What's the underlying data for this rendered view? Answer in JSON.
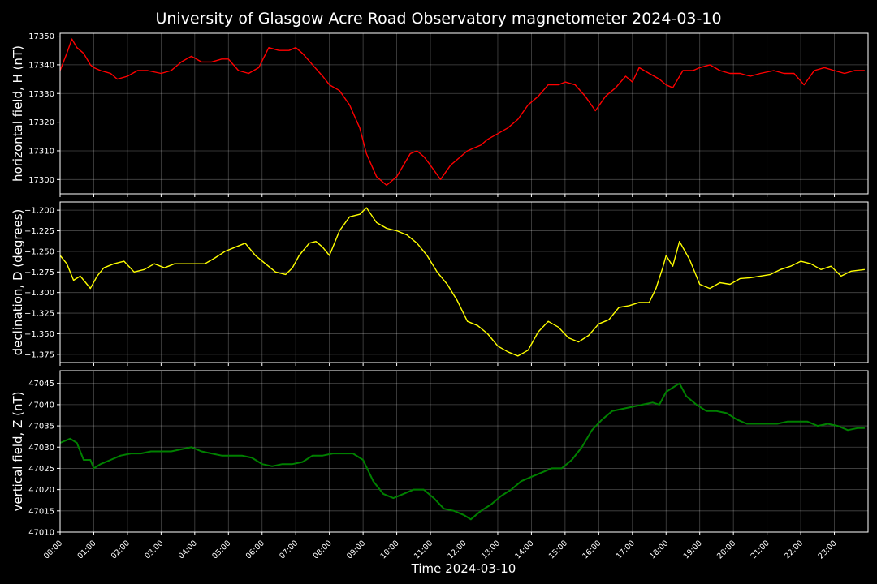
{
  "title": "University of Glasgow Acre Road Observatory magnetometer 2024-03-10",
  "xlabel": "Time 2024-03-10",
  "chart_data": [
    {
      "type": "line",
      "ylabel": "horizontal field, H (nT)",
      "color": "#ff0000",
      "ylim": [
        17295,
        17351
      ],
      "yticks": [
        17300,
        17310,
        17320,
        17330,
        17340,
        17350
      ],
      "ytick_labels": [
        "17300",
        "17310",
        "17320",
        "17330",
        "17340",
        "17350"
      ],
      "grid": true,
      "series": [
        {
          "x": [
            0,
            0.2,
            0.35,
            0.5,
            0.7,
            0.9,
            1.0,
            1.2,
            1.5,
            1.7,
            2.0,
            2.3,
            2.6,
            3.0,
            3.3,
            3.6,
            3.9,
            4.2,
            4.5,
            4.8,
            5.0,
            5.3,
            5.6,
            5.9,
            6.2,
            6.5,
            6.8,
            7.0,
            7.2,
            7.5,
            7.8,
            8.0,
            8.3,
            8.6,
            8.9,
            9.1,
            9.4,
            9.7,
            10.0,
            10.2,
            10.4,
            10.6,
            10.8,
            11.0,
            11.3,
            11.6,
            11.9,
            12.1,
            12.3,
            12.5,
            12.7,
            13.0,
            13.3,
            13.6,
            13.9,
            14.2,
            14.5,
            14.8,
            15.0,
            15.3,
            15.6,
            15.9,
            16.2,
            16.5,
            16.8,
            17.0,
            17.2,
            17.5,
            17.8,
            18.0,
            18.2,
            18.5,
            18.8,
            19.0,
            19.3,
            19.6,
            19.9,
            20.2,
            20.5,
            20.8,
            21.2,
            21.5,
            21.8,
            22.1,
            22.4,
            22.7,
            23.0,
            23.3,
            23.6,
            23.9
          ],
          "values": [
            17338,
            17344,
            17349,
            17346,
            17344,
            17340,
            17339,
            17338,
            17337,
            17335,
            17336,
            17338,
            17338,
            17337,
            17338,
            17341,
            17343,
            17341,
            17341,
            17342,
            17342,
            17338,
            17337,
            17339,
            17346,
            17345,
            17345,
            17346,
            17344,
            17340,
            17336,
            17333,
            17331,
            17326,
            17318,
            17309,
            17301,
            17298,
            17301,
            17305,
            17309,
            17310,
            17308,
            17305,
            17300,
            17305,
            17308,
            17310,
            17311,
            17312,
            17314,
            17316,
            17318,
            17321,
            17326,
            17329,
            17333,
            17333,
            17334,
            17333,
            17329,
            17324,
            17329,
            17332,
            17336,
            17334,
            17339,
            17337,
            17335,
            17333,
            17332,
            17338,
            17338,
            17339,
            17340,
            17338,
            17337,
            17337,
            17336,
            17337,
            17338,
            17337,
            17337,
            17333,
            17338,
            17339,
            17338,
            17337,
            17338,
            17338
          ]
        }
      ]
    },
    {
      "type": "line",
      "ylabel": "declination, D (degrees)",
      "color": "#ffff00",
      "ylim": [
        -1.385,
        -1.19
      ],
      "yticks": [
        -1.375,
        -1.35,
        -1.325,
        -1.3,
        -1.275,
        -1.25,
        -1.225,
        -1.2
      ],
      "ytick_labels": [
        "−1.375",
        "−1.350",
        "−1.325",
        "−1.300",
        "−1.275",
        "−1.250",
        "−1.225",
        "−1.200"
      ],
      "grid": true,
      "series": [
        {
          "x": [
            0,
            0.2,
            0.4,
            0.6,
            0.8,
            0.9,
            1.1,
            1.3,
            1.6,
            1.9,
            2.2,
            2.5,
            2.8,
            3.1,
            3.4,
            3.7,
            4.0,
            4.3,
            4.6,
            4.9,
            5.2,
            5.5,
            5.8,
            6.1,
            6.4,
            6.7,
            6.9,
            7.1,
            7.4,
            7.6,
            7.8,
            8.0,
            8.3,
            8.6,
            8.9,
            9.1,
            9.4,
            9.7,
            10.0,
            10.3,
            10.6,
            10.9,
            11.2,
            11.5,
            11.8,
            12.1,
            12.4,
            12.7,
            13.0,
            13.3,
            13.6,
            13.9,
            14.2,
            14.5,
            14.8,
            15.1,
            15.4,
            15.7,
            16.0,
            16.3,
            16.6,
            16.9,
            17.2,
            17.5,
            17.7,
            17.9,
            18.0,
            18.2,
            18.4,
            18.7,
            19.0,
            19.3,
            19.6,
            19.9,
            20.2,
            20.5,
            20.8,
            21.1,
            21.4,
            21.7,
            22.0,
            22.3,
            22.6,
            22.9,
            23.2,
            23.5,
            23.9
          ],
          "values": [
            -1.255,
            -1.265,
            -1.285,
            -1.28,
            -1.29,
            -1.295,
            -1.28,
            -1.27,
            -1.265,
            -1.262,
            -1.275,
            -1.272,
            -1.265,
            -1.27,
            -1.265,
            -1.265,
            -1.265,
            -1.265,
            -1.258,
            -1.25,
            -1.245,
            -1.24,
            -1.255,
            -1.265,
            -1.275,
            -1.278,
            -1.27,
            -1.255,
            -1.24,
            -1.238,
            -1.245,
            -1.255,
            -1.225,
            -1.208,
            -1.205,
            -1.197,
            -1.215,
            -1.222,
            -1.225,
            -1.23,
            -1.24,
            -1.255,
            -1.275,
            -1.29,
            -1.31,
            -1.335,
            -1.34,
            -1.35,
            -1.365,
            -1.372,
            -1.377,
            -1.37,
            -1.348,
            -1.335,
            -1.342,
            -1.355,
            -1.36,
            -1.352,
            -1.338,
            -1.333,
            -1.318,
            -1.316,
            -1.312,
            -1.312,
            -1.295,
            -1.27,
            -1.255,
            -1.268,
            -1.238,
            -1.26,
            -1.29,
            -1.295,
            -1.288,
            -1.29,
            -1.283,
            -1.282,
            -1.28,
            -1.278,
            -1.272,
            -1.268,
            -1.262,
            -1.265,
            -1.272,
            -1.268,
            -1.28,
            -1.274,
            -1.272
          ]
        }
      ]
    },
    {
      "type": "line",
      "ylabel": "vertical field, Z (nT)",
      "color": "#008000",
      "ylim": [
        47010,
        47048
      ],
      "yticks": [
        47010,
        47015,
        47020,
        47025,
        47030,
        47035,
        47040,
        47045
      ],
      "ytick_labels": [
        "47010",
        "47015",
        "47020",
        "47025",
        "47030",
        "47035",
        "47040",
        "47045"
      ],
      "grid": true,
      "series": [
        {
          "x": [
            0,
            0.3,
            0.5,
            0.7,
            0.9,
            1.0,
            1.2,
            1.5,
            1.8,
            2.1,
            2.4,
            2.7,
            3.0,
            3.3,
            3.6,
            3.9,
            4.2,
            4.5,
            4.8,
            5.1,
            5.4,
            5.7,
            6.0,
            6.3,
            6.6,
            6.9,
            7.2,
            7.5,
            7.8,
            8.1,
            8.4,
            8.7,
            9.0,
            9.3,
            9.6,
            9.9,
            10.2,
            10.5,
            10.8,
            11.1,
            11.4,
            11.7,
            12.0,
            12.2,
            12.5,
            12.8,
            13.1,
            13.4,
            13.7,
            14.0,
            14.3,
            14.6,
            14.9,
            15.2,
            15.5,
            15.8,
            16.1,
            16.4,
            16.7,
            17.0,
            17.3,
            17.6,
            17.8,
            18.0,
            18.2,
            18.4,
            18.6,
            18.9,
            19.2,
            19.5,
            19.8,
            20.1,
            20.4,
            20.7,
            21.0,
            21.3,
            21.6,
            21.9,
            22.2,
            22.5,
            22.8,
            23.1,
            23.4,
            23.7,
            23.9
          ],
          "values": [
            47031,
            47032,
            47031,
            47027,
            47027,
            47025,
            47026,
            47027,
            47028,
            47028.5,
            47028.5,
            47029,
            47029,
            47029,
            47029.5,
            47030,
            47029,
            47028.5,
            47028,
            47028,
            47028,
            47027.5,
            47026,
            47025.5,
            47026,
            47026,
            47026.5,
            47028,
            47028,
            47028.5,
            47028.5,
            47028.5,
            47027,
            47022,
            47019,
            47018,
            47019,
            47020,
            47020,
            47018,
            47015.5,
            47015,
            47014,
            47013,
            47015,
            47016.5,
            47018.5,
            47020,
            47022,
            47023,
            47024,
            47025,
            47025,
            47027,
            47030,
            47034,
            47036.5,
            47038.5,
            47039,
            47039.5,
            47040,
            47040.5,
            47040,
            47043,
            47044,
            47045,
            47042,
            47040,
            47038.5,
            47038.5,
            47038,
            47036.5,
            47035.5,
            47035.5,
            47035.5,
            47035.5,
            47036,
            47036,
            47036,
            47035,
            47035.5,
            47035,
            47034,
            47034.5,
            47034.5
          ]
        }
      ]
    }
  ],
  "x_axis": {
    "range_hours": [
      0,
      24
    ],
    "tick_labels": [
      "00:00",
      "01:00",
      "02:00",
      "03:00",
      "04:00",
      "05:00",
      "06:00",
      "07:00",
      "08:00",
      "09:00",
      "10:00",
      "11:00",
      "12:00",
      "13:00",
      "14:00",
      "15:00",
      "16:00",
      "17:00",
      "18:00",
      "19:00",
      "20:00",
      "21:00",
      "22:00",
      "23:00"
    ]
  },
  "background": "#000000",
  "foreground": "#ffffff"
}
